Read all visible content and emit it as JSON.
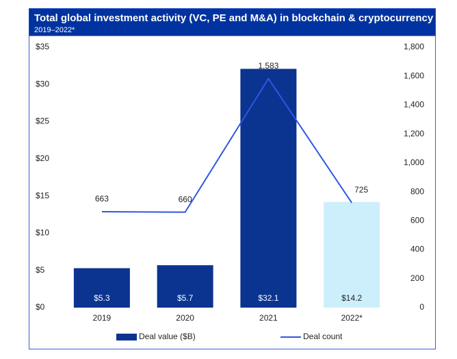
{
  "chart_data": {
    "type": "bar-line",
    "title": "Total global investment activity (VC, PE and M&A) in blockchain & cryptocurrency",
    "subtitle": "2019–2022*",
    "categories": [
      "2019",
      "2020",
      "2021",
      "2022*"
    ],
    "series": [
      {
        "name": "Deal value ($B)",
        "type": "bar",
        "color": "#0a348f",
        "colors": [
          "#0a348f",
          "#0a348f",
          "#0a348f",
          "#cdeffc"
        ],
        "label_colors": [
          "#ffffff",
          "#ffffff",
          "#ffffff",
          "#222222"
        ],
        "values": [
          5.3,
          5.7,
          32.1,
          14.2
        ],
        "value_labels": [
          "$5.3",
          "$5.7",
          "$32.1",
          "$14.2"
        ]
      },
      {
        "name": "Deal count",
        "type": "line",
        "axis": "y2",
        "color": "#2f55e4",
        "values": [
          663,
          660,
          1583,
          725
        ],
        "value_labels": [
          "663",
          "660",
          "1,583",
          "725"
        ]
      }
    ],
    "ylim": [
      0,
      35
    ],
    "yticks": [
      {
        "value": 0,
        "label": "$0"
      },
      {
        "value": 5,
        "label": "$5"
      },
      {
        "value": 10,
        "label": "$10"
      },
      {
        "value": 15,
        "label": "$15"
      },
      {
        "value": 20,
        "label": "$20"
      },
      {
        "value": 25,
        "label": "$25"
      },
      {
        "value": 30,
        "label": "$30"
      },
      {
        "value": 35,
        "label": "$35"
      }
    ],
    "y2lim": [
      0,
      1800
    ],
    "y2ticks": [
      0,
      200,
      400,
      600,
      800,
      {
        "value": 1000,
        "label": "1,000"
      },
      {
        "value": 1200,
        "label": "1,200"
      },
      {
        "value": 1400,
        "label": "1,400"
      },
      {
        "value": 1600,
        "label": "1,600"
      },
      {
        "value": 1800,
        "label": "1,800"
      }
    ],
    "legend": "bottom"
  }
}
